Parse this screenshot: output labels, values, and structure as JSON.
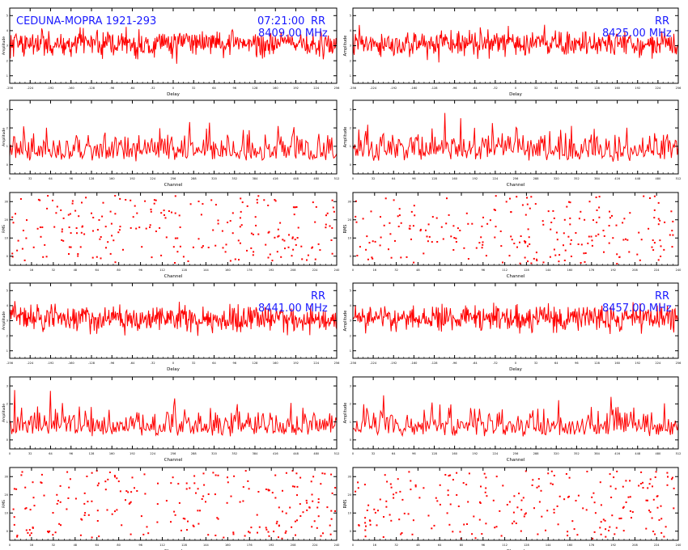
{
  "header": {
    "source": "CEDUNA-MOPRA 1921-293",
    "time": "07:21:00",
    "polarization": "RR"
  },
  "colors": {
    "trace": "#ff0000",
    "annotation": "#1a1aff",
    "axis": "#000000"
  },
  "labels": {
    "delay": "Delay",
    "channel": "Channel",
    "amplitude": "Amplitude",
    "rms": "RMS"
  },
  "chart_data": [
    {
      "type": "line",
      "plot": "delay",
      "frequency": "8409.00 MHz",
      "x_ticks": [
        "-256",
        "-224",
        "-192",
        "-160",
        "-128",
        "-96",
        "-64",
        "-32",
        "0",
        "32",
        "64",
        "96",
        "128",
        "160",
        "192",
        "224",
        "256"
      ],
      "y_ticks": [
        "1",
        "2",
        "3",
        "4",
        "5"
      ]
    },
    {
      "type": "line",
      "plot": "delay",
      "frequency": "8425.00 MHz",
      "x_ticks": [
        "-256",
        "-224",
        "-192",
        "-160",
        "-128",
        "-96",
        "-64",
        "-32",
        "0",
        "32",
        "64",
        "96",
        "128",
        "160",
        "192",
        "224",
        "256"
      ],
      "y_ticks": [
        "1",
        "2",
        "3",
        "4",
        "5"
      ]
    },
    {
      "type": "line",
      "plot": "amplitude",
      "x_ticks": [
        "0",
        "32",
        "64",
        "96",
        "128",
        "160",
        "192",
        "224",
        "256",
        "288",
        "320",
        "352",
        "384",
        "416",
        "448",
        "480",
        "512"
      ],
      "y_ticks": [
        "0",
        "1",
        "2",
        "3"
      ]
    },
    {
      "type": "line",
      "plot": "amplitude",
      "x_ticks": [
        "0",
        "32",
        "64",
        "96",
        "128",
        "160",
        "192",
        "224",
        "256",
        "288",
        "320",
        "352",
        "384",
        "416",
        "448",
        "480",
        "512"
      ],
      "y_ticks": [
        "0",
        "1",
        "2",
        "3"
      ]
    },
    {
      "type": "scatter",
      "plot": "rms",
      "x_ticks": [
        "0",
        "16",
        "32",
        "48",
        "64",
        "80",
        "96",
        "112",
        "128",
        "144",
        "160",
        "176",
        "192",
        "208",
        "224",
        "240"
      ],
      "y_ticks": [
        "0",
        "10",
        "20",
        "30"
      ]
    },
    {
      "type": "scatter",
      "plot": "rms",
      "x_ticks": [
        "0",
        "16",
        "32",
        "48",
        "64",
        "80",
        "96",
        "112",
        "128",
        "144",
        "160",
        "176",
        "192",
        "208",
        "224",
        "240"
      ],
      "y_ticks": [
        "0",
        "10",
        "20",
        "30"
      ]
    },
    {
      "type": "line",
      "plot": "delay",
      "frequency": "8441.00 MHz",
      "x_ticks": [
        "-256",
        "-224",
        "-192",
        "-160",
        "-128",
        "-96",
        "-64",
        "-32",
        "0",
        "32",
        "64",
        "96",
        "128",
        "160",
        "192",
        "224",
        "256"
      ],
      "y_ticks": [
        "1",
        "2",
        "3",
        "4",
        "5"
      ]
    },
    {
      "type": "line",
      "plot": "delay",
      "frequency": "8457.00 MHz",
      "x_ticks": [
        "-256",
        "-224",
        "-192",
        "-160",
        "-128",
        "-96",
        "-64",
        "-32",
        "0",
        "32",
        "64",
        "96",
        "128",
        "160",
        "192",
        "224",
        "256"
      ],
      "y_ticks": [
        "1",
        "2",
        "3",
        "4",
        "5"
      ]
    },
    {
      "type": "line",
      "plot": "amplitude",
      "x_ticks": [
        "0",
        "32",
        "64",
        "96",
        "128",
        "160",
        "192",
        "224",
        "256",
        "288",
        "320",
        "352",
        "384",
        "416",
        "448",
        "480",
        "512"
      ],
      "y_ticks": [
        "0",
        "1",
        "2",
        "3"
      ]
    },
    {
      "type": "line",
      "plot": "amplitude",
      "x_ticks": [
        "0",
        "32",
        "64",
        "96",
        "128",
        "160",
        "192",
        "224",
        "256",
        "288",
        "320",
        "352",
        "384",
        "416",
        "448",
        "480",
        "512"
      ],
      "y_ticks": [
        "0",
        "1",
        "2",
        "3"
      ]
    },
    {
      "type": "scatter",
      "plot": "rms",
      "x_ticks": [
        "0",
        "16",
        "32",
        "48",
        "64",
        "80",
        "96",
        "112",
        "128",
        "144",
        "160",
        "176",
        "192",
        "208",
        "224",
        "240"
      ],
      "y_ticks": [
        "0",
        "10",
        "20",
        "30"
      ]
    },
    {
      "type": "scatter",
      "plot": "rms",
      "x_ticks": [
        "0",
        "16",
        "32",
        "48",
        "64",
        "80",
        "96",
        "112",
        "128",
        "144",
        "160",
        "176",
        "192",
        "208",
        "224",
        "240"
      ],
      "y_ticks": [
        "0",
        "10",
        "20",
        "30"
      ]
    }
  ]
}
